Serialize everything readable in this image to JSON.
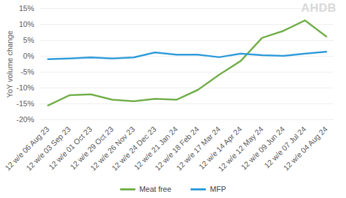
{
  "chart_data": {
    "type": "line",
    "y_label": "YoY volume change",
    "annotations": [
      "AHDB"
    ],
    "categories": [
      "12 w/e 06 Aug 23",
      "12 w/e 03 Sep 23",
      "12 w/e 01 Oct 23",
      "12 w/e 29 Oct 23",
      "12 w/e 26 Nov 23",
      "12 w/e 24 Dec 23",
      "12 w/e 21 Jan 24",
      "12 w/e 18 Feb 24",
      "12 w/e 17 Mar 24",
      "12 w/e 14 Apr 24",
      "12 w/e 12 May 24",
      "12 w/e 09 Jun 24",
      "12 w/e 07 Jul 24",
      "12 w/e 04 Aug 24"
    ],
    "series": [
      {
        "name": "Meat free",
        "color": "#70ad47",
        "values": [
          -15.5,
          -12.3,
          -12.0,
          -13.7,
          -14.2,
          -13.4,
          -13.7,
          -10.6,
          -5.8,
          -1.5,
          5.8,
          8.0,
          11.3,
          6.2
        ]
      },
      {
        "name": "MFP",
        "color": "#2c9ad9",
        "values": [
          -0.9,
          -0.7,
          -0.4,
          -0.7,
          -0.4,
          1.2,
          0.5,
          0.5,
          -0.3,
          0.8,
          0.3,
          0.1,
          0.8,
          1.4
        ]
      }
    ],
    "ylim": [
      -20,
      15
    ],
    "yticks": [
      {
        "value": -20,
        "label": "-20%"
      },
      {
        "value": -15,
        "label": "-15%"
      },
      {
        "value": -10,
        "label": "-10%"
      },
      {
        "value": -5,
        "label": "-5%"
      },
      {
        "value": 0,
        "label": "0%"
      },
      {
        "value": 5,
        "label": "5%"
      },
      {
        "value": 10,
        "label": "10%"
      },
      {
        "value": 15,
        "label": "15%"
      }
    ],
    "grid": true,
    "legend": "bottom"
  }
}
